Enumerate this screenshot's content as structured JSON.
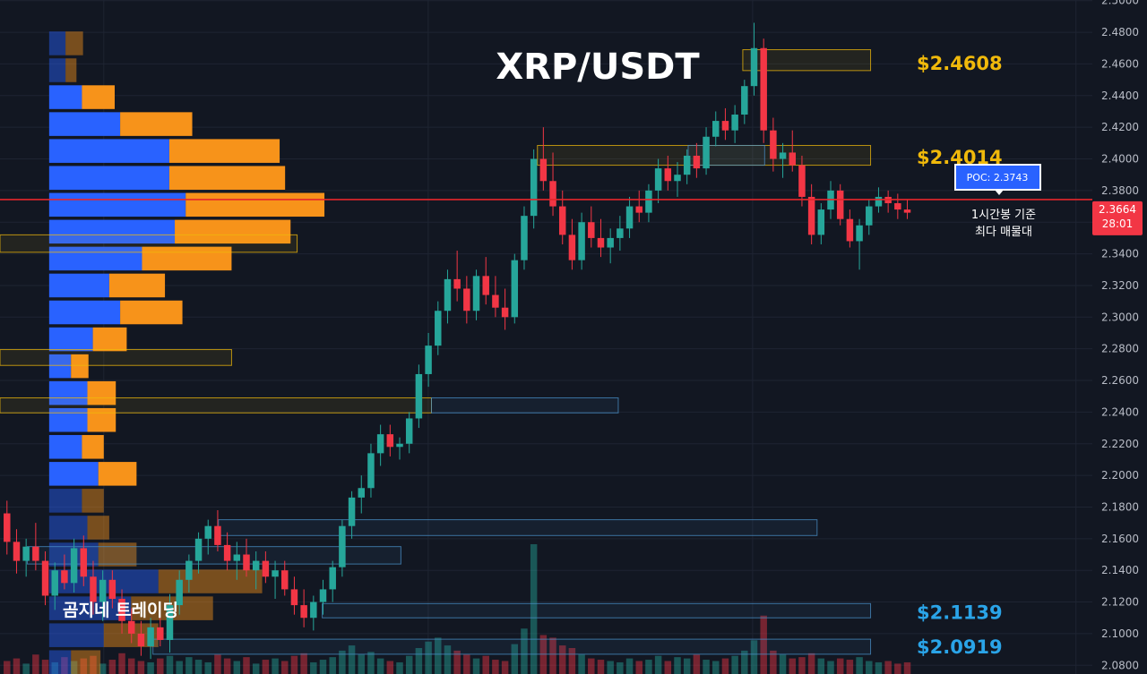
{
  "chart_data": {
    "type": "candlestick",
    "title": "XRP/USDT",
    "watermark": "곰지네 트레이딩",
    "ylim": [
      2.0745,
      2.5004
    ],
    "yticks": [
      "2.5000",
      "2.4800",
      "2.4600",
      "2.4400",
      "2.4200",
      "2.4000",
      "2.3800",
      "2.3600",
      "2.3400",
      "2.3200",
      "2.3000",
      "2.2800",
      "2.2600",
      "2.2400",
      "2.2200",
      "2.2000",
      "2.1800",
      "2.1600",
      "2.1400",
      "2.1200",
      "2.1000",
      "2.0800"
    ],
    "current_price": {
      "label": "2.3664",
      "countdown": "28:01",
      "value": 2.3664,
      "color": "#f23645"
    },
    "poc": {
      "label": "POC: 2.3743",
      "value": 2.3743,
      "note_line1": "1시간봉 기준",
      "note_line2": "최다 매물대",
      "line_color": "#e5262b"
    },
    "levels": [
      {
        "label": "$2.4608",
        "value": 2.4608,
        "color": "#f0b90b"
      },
      {
        "label": "$2.4014",
        "value": 2.4014,
        "color": "#f0b90b"
      },
      {
        "label": "$2.1139",
        "value": 2.1139,
        "color": "#2aa4e8"
      },
      {
        "label": "$2.0919",
        "value": 2.0919,
        "color": "#2aa4e8"
      }
    ],
    "zones": [
      {
        "y1": 2.4558,
        "y2": 2.469,
        "from": 0.68,
        "to": 0.797,
        "color": "#f0b90b"
      },
      {
        "y1": 2.396,
        "y2": 2.4085,
        "from": 0.492,
        "to": 0.797,
        "color": "#f0b90b"
      },
      {
        "y1": 2.396,
        "y2": 2.4085,
        "from": 0.63,
        "to": 0.7,
        "color": "#4a90c8"
      },
      {
        "y1": 2.341,
        "y2": 2.352,
        "from": 0.0,
        "to": 0.272,
        "color": "#f0b90b"
      },
      {
        "y1": 2.2695,
        "y2": 2.2795,
        "from": 0.0,
        "to": 0.212,
        "color": "#f0b90b"
      },
      {
        "y1": 2.2395,
        "y2": 2.249,
        "from": 0.0,
        "to": 0.395,
        "color": "#f0b90b"
      },
      {
        "y1": 2.2395,
        "y2": 2.249,
        "from": 0.395,
        "to": 0.566,
        "color": "#4a90c8"
      },
      {
        "y1": 2.162,
        "y2": 2.172,
        "from": 0.2,
        "to": 0.748,
        "color": "#4a90c8"
      },
      {
        "y1": 2.144,
        "y2": 2.155,
        "from": 0.025,
        "to": 0.367,
        "color": "#4a90c8"
      },
      {
        "y1": 2.11,
        "y2": 2.119,
        "from": 0.295,
        "to": 0.797,
        "color": "#4a90c8"
      },
      {
        "y1": 2.087,
        "y2": 2.0965,
        "from": 0.14,
        "to": 0.797,
        "color": "#4a90c8"
      }
    ],
    "profile_bands": [
      {
        "y_lo": 2.4655,
        "y_hi": 2.4805,
        "buy": 0.015,
        "sell": 0.016,
        "faded": true
      },
      {
        "y_lo": 2.4485,
        "y_hi": 2.4635,
        "buy": 0.015,
        "sell": 0.01,
        "faded": true
      },
      {
        "y_lo": 2.4315,
        "y_hi": 2.4465,
        "buy": 0.03,
        "sell": 0.03,
        "faded": false
      },
      {
        "y_lo": 2.4145,
        "y_hi": 2.4295,
        "buy": 0.065,
        "sell": 0.066,
        "faded": false
      },
      {
        "y_lo": 2.3975,
        "y_hi": 2.4125,
        "buy": 0.11,
        "sell": 0.101,
        "faded": false
      },
      {
        "y_lo": 2.3805,
        "y_hi": 2.3955,
        "buy": 0.11,
        "sell": 0.106,
        "faded": false
      },
      {
        "y_lo": 2.3635,
        "y_hi": 2.3785,
        "buy": 0.125,
        "sell": 0.127,
        "faded": false
      },
      {
        "y_lo": 2.3465,
        "y_hi": 2.3615,
        "buy": 0.115,
        "sell": 0.106,
        "faded": false
      },
      {
        "y_lo": 2.3295,
        "y_hi": 2.3445,
        "buy": 0.085,
        "sell": 0.082,
        "faded": false
      },
      {
        "y_lo": 2.3125,
        "y_hi": 2.3275,
        "buy": 0.055,
        "sell": 0.051,
        "faded": false
      },
      {
        "y_lo": 2.2955,
        "y_hi": 2.3105,
        "buy": 0.065,
        "sell": 0.057,
        "faded": false
      },
      {
        "y_lo": 2.2785,
        "y_hi": 2.2935,
        "buy": 0.04,
        "sell": 0.031,
        "faded": false
      },
      {
        "y_lo": 2.2615,
        "y_hi": 2.2765,
        "buy": 0.02,
        "sell": 0.016,
        "faded": false
      },
      {
        "y_lo": 2.2445,
        "y_hi": 2.2595,
        "buy": 0.035,
        "sell": 0.026,
        "faded": false
      },
      {
        "y_lo": 2.2275,
        "y_hi": 2.2425,
        "buy": 0.035,
        "sell": 0.026,
        "faded": false
      },
      {
        "y_lo": 2.2105,
        "y_hi": 2.2255,
        "buy": 0.03,
        "sell": 0.02,
        "faded": false
      },
      {
        "y_lo": 2.1935,
        "y_hi": 2.2085,
        "buy": 0.045,
        "sell": 0.035,
        "faded": false
      },
      {
        "y_lo": 2.1765,
        "y_hi": 2.1915,
        "buy": 0.03,
        "sell": 0.02,
        "faded": true
      },
      {
        "y_lo": 2.1595,
        "y_hi": 2.1745,
        "buy": 0.035,
        "sell": 0.02,
        "faded": true
      },
      {
        "y_lo": 2.1425,
        "y_hi": 2.1575,
        "buy": 0.045,
        "sell": 0.035,
        "faded": true
      },
      {
        "y_lo": 2.1255,
        "y_hi": 2.1405,
        "buy": 0.1,
        "sell": 0.095,
        "faded": true
      },
      {
        "y_lo": 2.1085,
        "y_hi": 2.1235,
        "buy": 0.075,
        "sell": 0.075,
        "faded": true
      },
      {
        "y_lo": 2.0915,
        "y_hi": 2.1065,
        "buy": 0.05,
        "sell": 0.05,
        "faded": true
      },
      {
        "y_lo": 2.0745,
        "y_hi": 2.0895,
        "buy": 0.02,
        "sell": 0.027,
        "faded": true
      }
    ],
    "candles": [
      [
        2.176,
        2.184,
        2.15,
        2.158
      ],
      [
        2.158,
        2.166,
        2.138,
        2.146
      ],
      [
        2.146,
        2.16,
        2.136,
        2.155
      ],
      [
        2.155,
        2.17,
        2.14,
        2.146
      ],
      [
        2.146,
        2.152,
        2.118,
        2.124
      ],
      [
        2.124,
        2.145,
        2.115,
        2.14
      ],
      [
        2.14,
        2.15,
        2.128,
        2.132
      ],
      [
        2.132,
        2.16,
        2.126,
        2.154
      ],
      [
        2.154,
        2.162,
        2.13,
        2.136
      ],
      [
        2.136,
        2.146,
        2.112,
        2.12
      ],
      [
        2.12,
        2.14,
        2.108,
        2.134
      ],
      [
        2.134,
        2.14,
        2.116,
        2.122
      ],
      [
        2.122,
        2.128,
        2.1,
        2.108
      ],
      [
        2.108,
        2.116,
        2.094,
        2.1
      ],
      [
        2.1,
        2.108,
        2.086,
        2.092
      ],
      [
        2.092,
        2.11,
        2.084,
        2.104
      ],
      [
        2.104,
        2.11,
        2.092,
        2.096
      ],
      [
        2.096,
        2.125,
        2.088,
        2.118
      ],
      [
        2.118,
        2.14,
        2.112,
        2.134
      ],
      [
        2.134,
        2.15,
        2.126,
        2.146
      ],
      [
        2.146,
        2.164,
        2.138,
        2.16
      ],
      [
        2.16,
        2.172,
        2.15,
        2.168
      ],
      [
        2.168,
        2.178,
        2.152,
        2.156
      ],
      [
        2.156,
        2.164,
        2.14,
        2.146
      ],
      [
        2.146,
        2.158,
        2.134,
        2.15
      ],
      [
        2.15,
        2.16,
        2.136,
        2.14
      ],
      [
        2.14,
        2.152,
        2.128,
        2.146
      ],
      [
        2.146,
        2.152,
        2.132,
        2.136
      ],
      [
        2.136,
        2.146,
        2.122,
        2.14
      ],
      [
        2.14,
        2.146,
        2.124,
        2.128
      ],
      [
        2.128,
        2.136,
        2.112,
        2.118
      ],
      [
        2.118,
        2.128,
        2.104,
        2.11
      ],
      [
        2.11,
        2.124,
        2.102,
        2.12
      ],
      [
        2.12,
        2.134,
        2.112,
        2.128
      ],
      [
        2.128,
        2.146,
        2.12,
        2.142
      ],
      [
        2.142,
        2.172,
        2.136,
        2.168
      ],
      [
        2.168,
        2.19,
        2.16,
        2.186
      ],
      [
        2.186,
        2.2,
        2.176,
        2.192
      ],
      [
        2.192,
        2.22,
        2.186,
        2.214
      ],
      [
        2.214,
        2.232,
        2.206,
        2.226
      ],
      [
        2.226,
        2.232,
        2.212,
        2.218
      ],
      [
        2.218,
        2.224,
        2.21,
        2.22
      ],
      [
        2.22,
        2.24,
        2.214,
        2.236
      ],
      [
        2.236,
        2.27,
        2.23,
        2.264
      ],
      [
        2.264,
        2.29,
        2.256,
        2.282
      ],
      [
        2.282,
        2.31,
        2.276,
        2.304
      ],
      [
        2.304,
        2.33,
        2.296,
        2.324
      ],
      [
        2.324,
        2.342,
        2.31,
        2.318
      ],
      [
        2.318,
        2.326,
        2.296,
        2.304
      ],
      [
        2.304,
        2.33,
        2.298,
        2.326
      ],
      [
        2.326,
        2.338,
        2.308,
        2.314
      ],
      [
        2.314,
        2.326,
        2.3,
        2.306
      ],
      [
        2.306,
        2.318,
        2.292,
        2.3
      ],
      [
        2.3,
        2.34,
        2.296,
        2.336
      ],
      [
        2.336,
        2.37,
        2.33,
        2.364
      ],
      [
        2.364,
        2.406,
        2.356,
        2.4
      ],
      [
        2.4,
        2.42,
        2.38,
        2.386
      ],
      [
        2.386,
        2.404,
        2.364,
        2.37
      ],
      [
        2.37,
        2.38,
        2.346,
        2.352
      ],
      [
        2.352,
        2.362,
        2.33,
        2.336
      ],
      [
        2.336,
        2.366,
        2.33,
        2.36
      ],
      [
        2.36,
        2.37,
        2.344,
        2.35
      ],
      [
        2.35,
        2.362,
        2.338,
        2.344
      ],
      [
        2.344,
        2.356,
        2.334,
        2.35
      ],
      [
        2.35,
        2.364,
        2.342,
        2.356
      ],
      [
        2.356,
        2.376,
        2.35,
        2.37
      ],
      [
        2.37,
        2.38,
        2.36,
        2.366
      ],
      [
        2.366,
        2.384,
        2.36,
        2.38
      ],
      [
        2.38,
        2.4,
        2.372,
        2.394
      ],
      [
        2.394,
        2.402,
        2.38,
        2.386
      ],
      [
        2.386,
        2.398,
        2.376,
        2.39
      ],
      [
        2.39,
        2.406,
        2.384,
        2.402
      ],
      [
        2.402,
        2.41,
        2.388,
        2.394
      ],
      [
        2.394,
        2.42,
        2.39,
        2.414
      ],
      [
        2.414,
        2.43,
        2.408,
        2.424
      ],
      [
        2.424,
        2.432,
        2.412,
        2.418
      ],
      [
        2.418,
        2.434,
        2.41,
        2.428
      ],
      [
        2.428,
        2.45,
        2.422,
        2.446
      ],
      [
        2.446,
        2.486,
        2.44,
        2.47
      ],
      [
        2.47,
        2.476,
        2.41,
        2.418
      ],
      [
        2.418,
        2.426,
        2.392,
        2.4
      ],
      [
        2.4,
        2.41,
        2.388,
        2.404
      ],
      [
        2.404,
        2.418,
        2.392,
        2.396
      ],
      [
        2.396,
        2.402,
        2.37,
        2.376
      ],
      [
        2.376,
        2.384,
        2.346,
        2.352
      ],
      [
        2.352,
        2.372,
        2.346,
        2.368
      ],
      [
        2.368,
        2.386,
        2.362,
        2.38
      ],
      [
        2.38,
        2.384,
        2.358,
        2.362
      ],
      [
        2.362,
        2.368,
        2.344,
        2.348
      ],
      [
        2.348,
        2.362,
        2.33,
        2.358
      ],
      [
        2.358,
        2.374,
        2.352,
        2.37
      ],
      [
        2.37,
        2.382,
        2.366,
        2.376
      ],
      [
        2.376,
        2.38,
        2.366,
        2.372
      ],
      [
        2.372,
        2.378,
        2.362,
        2.368
      ],
      [
        2.368,
        2.374,
        2.362,
        2.366
      ]
    ],
    "volumes": [
      0.1,
      0.12,
      0.08,
      0.15,
      0.11,
      0.09,
      0.13,
      0.1,
      0.12,
      0.14,
      0.08,
      0.11,
      0.16,
      0.12,
      0.1,
      0.09,
      0.12,
      0.14,
      0.1,
      0.13,
      0.11,
      0.09,
      0.15,
      0.12,
      0.1,
      0.13,
      0.08,
      0.11,
      0.12,
      0.1,
      0.14,
      0.16,
      0.09,
      0.11,
      0.13,
      0.18,
      0.22,
      0.15,
      0.17,
      0.12,
      0.1,
      0.09,
      0.14,
      0.2,
      0.25,
      0.28,
      0.22,
      0.18,
      0.15,
      0.12,
      0.14,
      0.11,
      0.1,
      0.23,
      0.35,
      1.0,
      0.3,
      0.28,
      0.22,
      0.2,
      0.15,
      0.12,
      0.11,
      0.1,
      0.09,
      0.12,
      0.1,
      0.11,
      0.14,
      0.1,
      0.13,
      0.12,
      0.15,
      0.11,
      0.1,
      0.12,
      0.14,
      0.18,
      0.26,
      0.45,
      0.18,
      0.15,
      0.12,
      0.13,
      0.16,
      0.12,
      0.1,
      0.12,
      0.11,
      0.13,
      0.1,
      0.09,
      0.1,
      0.08,
      0.09
    ],
    "colors": {
      "up": "#26a69a",
      "down": "#f23645",
      "buy": "#2962ff",
      "sell": "#f7931a",
      "background": "#121722",
      "grid": "#1e2432",
      "axis_text": "#b8bcc6"
    }
  }
}
